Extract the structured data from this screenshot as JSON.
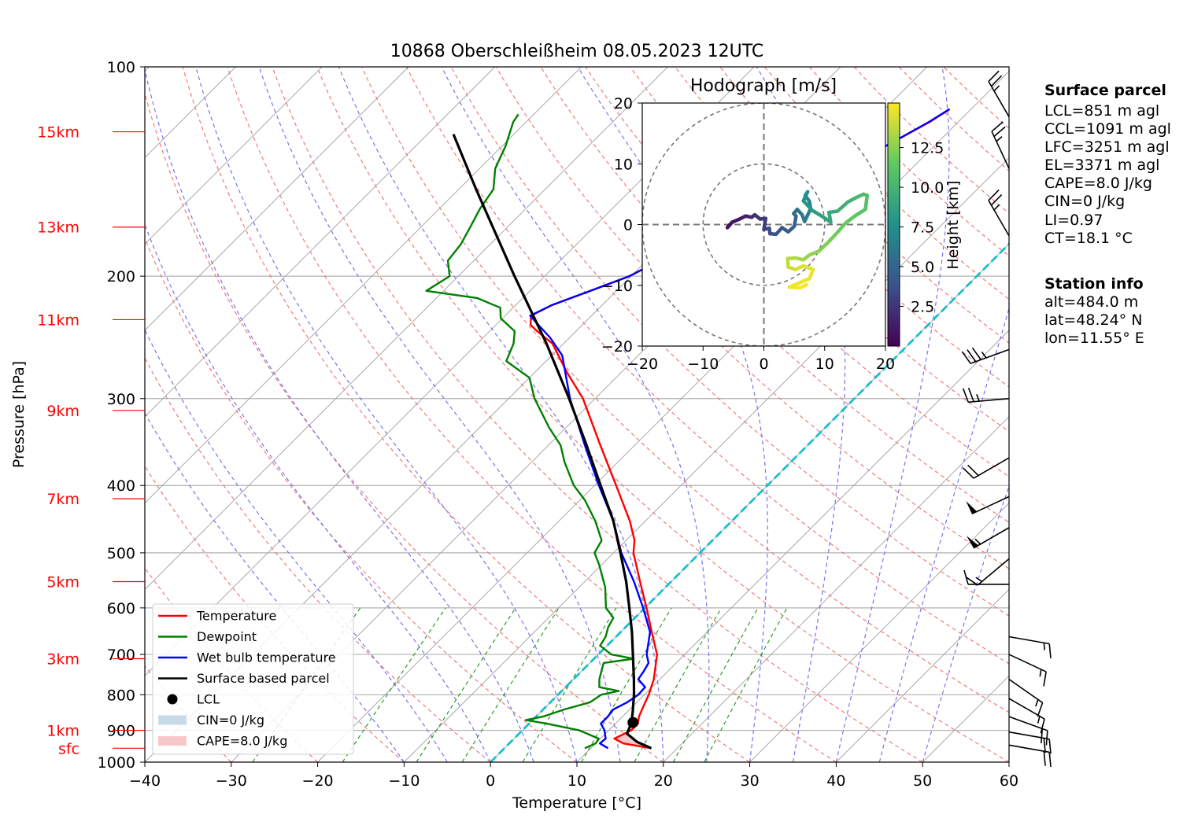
{
  "title": "10868 Oberschleißheim 08.05.2023 12UTC",
  "chart_data": [
    {
      "type": "skew-t",
      "xlabel": "Temperature [°C]",
      "ylabel": "Pressure [hPa]",
      "xlim": [
        -40,
        60
      ],
      "ylim": [
        1000,
        100
      ],
      "x_ticks": [
        "−40",
        "−30",
        "−20",
        "−10",
        "0",
        "10",
        "20",
        "30",
        "40",
        "50",
        "60"
      ],
      "y_ticks": [
        {
          "p": 100,
          "label": "100"
        },
        {
          "p": 200,
          "label": "200"
        },
        {
          "p": 300,
          "label": "300"
        },
        {
          "p": 400,
          "label": "400"
        },
        {
          "p": 500,
          "label": "500"
        },
        {
          "p": 600,
          "label": "600"
        },
        {
          "p": 700,
          "label": "700"
        },
        {
          "p": 800,
          "label": "800"
        },
        {
          "p": 900,
          "label": "900"
        },
        {
          "p": 1000,
          "label": "1000"
        }
      ],
      "height_markers": [
        {
          "p": 955,
          "label": "sfc"
        },
        {
          "p": 900,
          "label": "1km"
        },
        {
          "p": 710,
          "label": "3km"
        },
        {
          "p": 550,
          "label": "5km"
        },
        {
          "p": 418,
          "label": "7km"
        },
        {
          "p": 312,
          "label": "9km"
        },
        {
          "p": 231,
          "label": "11km"
        },
        {
          "p": 170,
          "label": "13km"
        },
        {
          "p": 124,
          "label": "15km"
        }
      ],
      "series": [
        {
          "name": "Temperature",
          "color": "#ff0000",
          "points": [
            [
              955,
              17.0
            ],
            [
              940,
              13.2
            ],
            [
              925,
              11.6
            ],
            [
              900,
              12.6
            ],
            [
              880,
              12.6
            ],
            [
              860,
              11.9
            ],
            [
              830,
              11.2
            ],
            [
              800,
              10.5
            ],
            [
              760,
              9.3
            ],
            [
              700,
              6.8
            ],
            [
              650,
              3.6
            ],
            [
              600,
              0.2
            ],
            [
              550,
              -3.6
            ],
            [
              500,
              -7.7
            ],
            [
              480,
              -9.0
            ],
            [
              450,
              -11.8
            ],
            [
              400,
              -17.5
            ],
            [
              350,
              -24.0
            ],
            [
              300,
              -31.4
            ],
            [
              275,
              -36.3
            ],
            [
              250,
              -41.3
            ],
            [
              240,
              -44.5
            ],
            [
              235,
              -46.0
            ],
            [
              228,
              -47.0
            ],
            [
              220,
              -45.8
            ],
            [
              210,
              -43.0
            ],
            [
              200,
              -40.2
            ],
            [
              180,
              -36.7
            ],
            [
              160,
              -32.5
            ],
            [
              145,
              -28.8
            ],
            [
              130,
              -25.6
            ],
            [
              120,
              -23.3
            ],
            [
              115,
              -22.5
            ]
          ]
        },
        {
          "name": "Dewpoint",
          "color": "#008000",
          "points": [
            [
              955,
              9.3
            ],
            [
              940,
              10.0
            ],
            [
              925,
              9.8
            ],
            [
              900,
              6.6
            ],
            [
              880,
              2.0
            ],
            [
              870,
              -0.8
            ],
            [
              860,
              0.8
            ],
            [
              840,
              2.4
            ],
            [
              820,
              4.6
            ],
            [
              800,
              5.0
            ],
            [
              790,
              6.6
            ],
            [
              780,
              3.9
            ],
            [
              760,
              3.0
            ],
            [
              740,
              2.3
            ],
            [
              720,
              1.6
            ],
            [
              710,
              4.6
            ],
            [
              700,
              1.5
            ],
            [
              680,
              -0.8
            ],
            [
              660,
              -1.2
            ],
            [
              640,
              -2.0
            ],
            [
              620,
              -2.5
            ],
            [
              600,
              -4.5
            ],
            [
              560,
              -7.0
            ],
            [
              520,
              -10.3
            ],
            [
              500,
              -12.2
            ],
            [
              480,
              -12.8
            ],
            [
              450,
              -15.8
            ],
            [
              420,
              -19.4
            ],
            [
              400,
              -22.4
            ],
            [
              370,
              -26.2
            ],
            [
              350,
              -28.6
            ],
            [
              330,
              -32.0
            ],
            [
              300,
              -37.0
            ],
            [
              280,
              -40.0
            ],
            [
              265,
              -44.6
            ],
            [
              250,
              -45.8
            ],
            [
              240,
              -47.1
            ],
            [
              230,
              -50.2
            ],
            [
              222,
              -51.5
            ],
            [
              215,
              -55.3
            ],
            [
              210,
              -62.0
            ],
            [
              200,
              -61.0
            ],
            [
              190,
              -63.0
            ],
            [
              180,
              -63.4
            ],
            [
              170,
              -64.3
            ],
            [
              160,
              -65.3
            ],
            [
              150,
              -66.0
            ],
            [
              140,
              -68.2
            ],
            [
              130,
              -69.6
            ],
            [
              120,
              -71.5
            ],
            [
              117,
              -71.8
            ]
          ]
        },
        {
          "name": "Wet bulb temperature",
          "color": "#0000ff",
          "points": [
            [
              955,
              12.0
            ],
            [
              940,
              10.5
            ],
            [
              925,
              10.6
            ],
            [
              900,
              9.5
            ],
            [
              880,
              8.3
            ],
            [
              860,
              8.3
            ],
            [
              840,
              8.1
            ],
            [
              820,
              8.9
            ],
            [
              800,
              9.3
            ],
            [
              780,
              9.2
            ],
            [
              760,
              7.5
            ],
            [
              740,
              7.2
            ],
            [
              720,
              6.8
            ],
            [
              700,
              5.6
            ],
            [
              650,
              3.4
            ],
            [
              600,
              -0.2
            ],
            [
              550,
              -4.3
            ],
            [
              500,
              -9.1
            ],
            [
              450,
              -13.7
            ],
            [
              400,
              -19.5
            ],
            [
              350,
              -25.8
            ],
            [
              300,
              -32.9
            ],
            [
              260,
              -38.8
            ],
            [
              245,
              -42.3
            ],
            [
              235,
              -45.1
            ],
            [
              228,
              -47.1
            ],
            [
              220,
              -45.8
            ],
            [
              210,
              -43.0
            ],
            [
              200,
              -40.2
            ],
            [
              180,
              -36.7
            ],
            [
              160,
              -32.5
            ],
            [
              145,
              -28.8
            ],
            [
              130,
              -25.6
            ],
            [
              120,
              -23.4
            ],
            [
              115,
              -22.5
            ]
          ]
        },
        {
          "name": "Surface based parcel",
          "color": "#000000",
          "points": [
            [
              955,
              17.0
            ],
            [
              935,
              14.6
            ],
            [
              910,
              12.5
            ],
            [
              880,
              11.8
            ],
            [
              851,
              10.8
            ],
            [
              800,
              8.8
            ],
            [
              760,
              7.0
            ],
            [
              700,
              4.0
            ],
            [
              650,
              1.3
            ],
            [
              600,
              -1.8
            ],
            [
              550,
              -5.2
            ],
            [
              500,
              -9.2
            ],
            [
              450,
              -13.7
            ],
            [
              400,
              -19.3
            ],
            [
              350,
              -25.6
            ],
            [
              300,
              -33.0
            ],
            [
              250,
              -42.0
            ],
            [
              200,
              -53.5
            ],
            [
              150,
              -68.0
            ],
            [
              125,
              -77.0
            ]
          ]
        }
      ],
      "lcl": {
        "p": 877,
        "t": 11.9,
        "label": "LCL"
      },
      "cin_label": "CIN=0 J/kg",
      "cape_label": "CAPE=8.0 J/kg",
      "cape_fill_color": "#f4b6b8",
      "cin_fill_color": "#b6cee0",
      "isotherm_0": {
        "color": "#17becf",
        "style": "dashed"
      },
      "legend_position": "lower-left",
      "wind_barbs": [
        {
          "p": 945,
          "dir": 100,
          "speed_kt": 20
        },
        {
          "p": 905,
          "dir": 100,
          "speed_kt": 20
        },
        {
          "p": 860,
          "dir": 110,
          "speed_kt": 20
        },
        {
          "p": 810,
          "dir": 120,
          "speed_kt": 15
        },
        {
          "p": 760,
          "dir": 125,
          "speed_kt": 15
        },
        {
          "p": 700,
          "dir": 115,
          "speed_kt": 15
        },
        {
          "p": 660,
          "dir": 100,
          "speed_kt": 15
        },
        {
          "p": 555,
          "dir": 270,
          "speed_kt": 10
        },
        {
          "p": 510,
          "dir": 230,
          "speed_kt": 15
        },
        {
          "p": 460,
          "dir": 240,
          "speed_kt": 55
        },
        {
          "p": 415,
          "dir": 245,
          "speed_kt": 50
        },
        {
          "p": 365,
          "dir": 240,
          "speed_kt": 20
        },
        {
          "p": 300,
          "dir": 265,
          "speed_kt": 25
        },
        {
          "p": 255,
          "dir": 250,
          "speed_kt": 35
        },
        {
          "p": 175,
          "dir": 330,
          "speed_kt": 25
        },
        {
          "p": 140,
          "dir": 335,
          "speed_kt": 25
        },
        {
          "p": 118,
          "dir": 330,
          "speed_kt": 25
        }
      ]
    },
    {
      "type": "hodograph",
      "title": "Hodograph [m/s]",
      "xlim": [
        -20,
        20
      ],
      "ylim": [
        -20,
        20
      ],
      "ticks": [
        "−20",
        "−10",
        "0",
        "10",
        "20"
      ],
      "colorbar_label": "Height [km]",
      "colorbar_ticks": [
        "2.5",
        "5.0",
        "7.5",
        "10.0",
        "12.5"
      ],
      "colormap": "viridis",
      "points": [
        [
          -5.5,
          0.1,
          0.5
        ],
        [
          -6.0,
          -0.5,
          0.7
        ],
        [
          -5.2,
          0.4,
          1.0
        ],
        [
          -4.0,
          0.9,
          1.3
        ],
        [
          -3.0,
          1.4,
          1.6
        ],
        [
          -2.0,
          1.2,
          1.9
        ],
        [
          -1.5,
          1.6,
          2.2
        ],
        [
          -0.6,
          0.9,
          2.5
        ],
        [
          0.3,
          1.0,
          2.8
        ],
        [
          0.0,
          -0.8,
          3.1
        ],
        [
          0.9,
          -0.6,
          3.4
        ],
        [
          1.0,
          -1.5,
          3.7
        ],
        [
          2.0,
          -1.6,
          4.0
        ],
        [
          3.0,
          -0.5,
          4.3
        ],
        [
          4.0,
          -1.2,
          4.6
        ],
        [
          5.0,
          -0.3,
          4.9
        ],
        [
          5.3,
          1.4,
          5.2
        ],
        [
          4.9,
          1.8,
          5.5
        ],
        [
          5.5,
          2.5,
          5.8
        ],
        [
          6.3,
          1.6,
          6.1
        ],
        [
          6.7,
          0.5,
          6.4
        ],
        [
          7.7,
          2.6,
          6.8
        ],
        [
          7.5,
          3.8,
          7.1
        ],
        [
          6.8,
          4.8,
          7.4
        ],
        [
          7.2,
          5.4,
          7.7
        ],
        [
          6.5,
          3.9,
          8.0
        ],
        [
          8.0,
          2.3,
          8.4
        ],
        [
          9.5,
          1.4,
          8.7
        ],
        [
          11.0,
          0.4,
          9.0
        ],
        [
          10.7,
          2.0,
          9.3
        ],
        [
          12.1,
          2.2,
          9.6
        ],
        [
          13.8,
          3.7,
          9.9
        ],
        [
          15.3,
          4.5,
          10.2
        ],
        [
          16.4,
          5.0,
          10.5
        ],
        [
          17.0,
          4.8,
          10.8
        ],
        [
          16.7,
          2.5,
          11.1
        ],
        [
          15.1,
          1.5,
          11.4
        ],
        [
          13.5,
          0.3,
          11.7
        ],
        [
          12.0,
          -1.4,
          12.0
        ],
        [
          10.5,
          -3.0,
          12.3
        ],
        [
          9.0,
          -4.4,
          12.6
        ],
        [
          7.5,
          -5.0,
          12.9
        ],
        [
          6.5,
          -5.8,
          13.2
        ],
        [
          5.2,
          -5.5,
          13.5
        ],
        [
          3.9,
          -5.6,
          13.8
        ],
        [
          4.0,
          -7.0,
          14.1
        ],
        [
          5.2,
          -7.4,
          14.4
        ],
        [
          6.5,
          -6.8,
          14.6
        ],
        [
          8.1,
          -7.4,
          14.8
        ],
        [
          7.5,
          -8.9,
          14.9
        ],
        [
          5.6,
          -9.7,
          15.0
        ],
        [
          4.2,
          -10.3,
          15.1
        ],
        [
          6.0,
          -10.4,
          15.2
        ],
        [
          7.0,
          -9.9,
          15.3
        ]
      ]
    }
  ],
  "legend": [
    {
      "label": "Temperature",
      "kind": "line",
      "color": "#ff0000"
    },
    {
      "label": "Dewpoint",
      "kind": "line",
      "color": "#008000"
    },
    {
      "label": "Wet bulb temperature",
      "kind": "line",
      "color": "#0000ff"
    },
    {
      "label": "Surface based parcel",
      "kind": "line",
      "color": "#000000"
    },
    {
      "label": "LCL",
      "kind": "dot",
      "color": "#000000"
    },
    {
      "label": "CIN=0 J/kg",
      "kind": "patch",
      "color": "#b6cee0"
    },
    {
      "label": "CAPE=8.0 J/kg",
      "kind": "patch",
      "color": "#f4b6b8"
    }
  ],
  "side_panel": {
    "surface_title": "Surface parcel",
    "surface_lines": [
      "LCL=851 m agl",
      "CCL=1091 m agl",
      "LFC=3251 m agl",
      "EL=3371 m agl",
      "CAPE=8.0 J/kg",
      "CIN=0 J/kg",
      "LI=0.97",
      "CT=18.1 °C"
    ],
    "station_title": "Station info",
    "station_lines": [
      "alt=484.0 m",
      "lat=48.24° N",
      "lon=11.55° E"
    ]
  }
}
